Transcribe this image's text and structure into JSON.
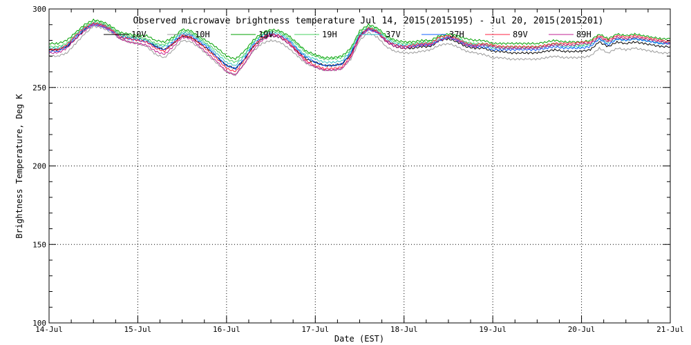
{
  "chart_data": {
    "type": "line",
    "title": "Observed microwave brightness temperature Jul 14, 2015(2015195) - Jul 20, 2015(2015201)",
    "xlabel": "Date (EST)",
    "ylabel": "Brightness Temperature, Deg K",
    "xlim": [
      0,
      7
    ],
    "ylim": [
      100,
      300
    ],
    "grid": true,
    "legend_placement": "top",
    "x_ticks": [
      {
        "value": 0,
        "label": "14-Jul"
      },
      {
        "value": 1,
        "label": "15-Jul"
      },
      {
        "value": 2,
        "label": "16-Jul"
      },
      {
        "value": 3,
        "label": "17-Jul"
      },
      {
        "value": 4,
        "label": "18-Jul"
      },
      {
        "value": 5,
        "label": "19-Jul"
      },
      {
        "value": 6,
        "label": "20-Jul"
      },
      {
        "value": 7,
        "label": "21-Jul"
      }
    ],
    "y_ticks": [
      {
        "value": 100,
        "label": "100"
      },
      {
        "value": 150,
        "label": "150"
      },
      {
        "value": 200,
        "label": "200"
      },
      {
        "value": 250,
        "label": "250"
      },
      {
        "value": 300,
        "label": "300"
      }
    ],
    "x": [
      0.0,
      0.1,
      0.2,
      0.3,
      0.4,
      0.5,
      0.6,
      0.7,
      0.8,
      0.9,
      1.0,
      1.1,
      1.2,
      1.3,
      1.4,
      1.5,
      1.6,
      1.7,
      1.8,
      1.9,
      2.0,
      2.1,
      2.2,
      2.3,
      2.4,
      2.5,
      2.6,
      2.7,
      2.8,
      2.9,
      3.0,
      3.1,
      3.2,
      3.3,
      3.4,
      3.5,
      3.6,
      3.7,
      3.8,
      3.9,
      4.0,
      4.1,
      4.2,
      4.3,
      4.4,
      4.5,
      4.6,
      4.7,
      4.8,
      4.9,
      5.0,
      5.1,
      5.2,
      5.3,
      5.4,
      5.5,
      5.6,
      5.7,
      5.8,
      5.9,
      6.0,
      6.1,
      6.2,
      6.3,
      6.4,
      6.5,
      6.6,
      6.7,
      6.8,
      6.9,
      7.0
    ],
    "series": [
      {
        "name": "10V",
        "color": "#000000",
        "values": [
          274,
          274,
          276,
          281,
          287,
          291,
          290,
          287,
          283,
          282,
          281,
          280,
          276,
          274,
          278,
          283,
          282,
          278,
          274,
          269,
          264,
          262,
          268,
          276,
          281,
          283,
          282,
          278,
          273,
          268,
          266,
          264,
          264,
          265,
          271,
          283,
          288,
          285,
          279,
          276,
          275,
          275,
          276,
          276,
          280,
          281,
          279,
          276,
          275,
          275,
          273,
          273,
          272,
          272,
          272,
          272,
          273,
          274,
          273,
          273,
          273,
          274,
          279,
          276,
          279,
          278,
          279,
          278,
          277,
          276,
          276
        ]
      },
      {
        "name": "10H",
        "color": "#9a9a9a",
        "values": [
          270,
          270,
          272,
          278,
          284,
          289,
          288,
          285,
          281,
          279,
          278,
          276,
          271,
          269,
          274,
          280,
          279,
          275,
          270,
          265,
          260,
          258,
          265,
          273,
          278,
          280,
          279,
          275,
          270,
          265,
          263,
          261,
          261,
          262,
          268,
          280,
          285,
          282,
          276,
          273,
          272,
          272,
          273,
          274,
          277,
          278,
          276,
          273,
          272,
          271,
          269,
          269,
          268,
          268,
          268,
          268,
          269,
          270,
          269,
          269,
          269,
          270,
          275,
          272,
          275,
          274,
          275,
          274,
          273,
          272,
          272
        ]
      },
      {
        "name": "19V",
        "color": "#00a000",
        "values": [
          278,
          278,
          280,
          285,
          290,
          293,
          292,
          289,
          285,
          284,
          283,
          283,
          280,
          279,
          282,
          287,
          286,
          282,
          279,
          275,
          270,
          268,
          273,
          280,
          285,
          287,
          286,
          283,
          278,
          273,
          271,
          269,
          269,
          270,
          275,
          286,
          290,
          288,
          283,
          280,
          279,
          279,
          280,
          280,
          283,
          284,
          283,
          281,
          280,
          280,
          278,
          278,
          278,
          278,
          278,
          278,
          279,
          280,
          279,
          279,
          279,
          280,
          284,
          281,
          284,
          283,
          284,
          283,
          282,
          281,
          281
        ]
      },
      {
        "name": "19H",
        "color": "#4ad060",
        "values": [
          276,
          276,
          278,
          284,
          289,
          292,
          291,
          288,
          284,
          283,
          282,
          281,
          278,
          277,
          281,
          286,
          285,
          281,
          277,
          273,
          268,
          266,
          271,
          279,
          284,
          286,
          285,
          282,
          277,
          272,
          270,
          268,
          268,
          269,
          274,
          285,
          289,
          287,
          282,
          279,
          278,
          278,
          279,
          279,
          282,
          283,
          282,
          279,
          278,
          278,
          276,
          276,
          276,
          276,
          276,
          276,
          277,
          278,
          277,
          277,
          277,
          278,
          282,
          279,
          282,
          281,
          282,
          281,
          280,
          279,
          279
        ]
      },
      {
        "name": "37V",
        "color": "#30c0c0",
        "values": [
          275,
          275,
          277,
          283,
          288,
          291,
          290,
          287,
          283,
          282,
          281,
          280,
          277,
          276,
          280,
          285,
          284,
          280,
          276,
          271,
          266,
          264,
          270,
          278,
          283,
          285,
          284,
          281,
          275,
          270,
          268,
          266,
          266,
          267,
          273,
          284,
          288,
          286,
          281,
          278,
          277,
          277,
          278,
          278,
          281,
          282,
          281,
          278,
          277,
          277,
          275,
          275,
          275,
          275,
          275,
          275,
          276,
          277,
          276,
          276,
          276,
          277,
          281,
          278,
          281,
          280,
          281,
          280,
          279,
          278,
          278
        ]
      },
      {
        "name": "37H",
        "color": "#1060ff",
        "values": [
          273,
          273,
          276,
          282,
          287,
          290,
          289,
          286,
          282,
          281,
          280,
          279,
          276,
          274,
          279,
          284,
          283,
          279,
          275,
          269,
          264,
          262,
          268,
          277,
          282,
          284,
          283,
          280,
          274,
          269,
          266,
          264,
          264,
          265,
          272,
          283,
          287,
          285,
          280,
          277,
          276,
          276,
          277,
          277,
          280,
          282,
          280,
          277,
          276,
          276,
          274,
          274,
          274,
          274,
          274,
          274,
          275,
          276,
          275,
          275,
          275,
          276,
          281,
          277,
          281,
          280,
          281,
          280,
          279,
          278,
          278
        ]
      },
      {
        "name": "89V",
        "color": "#ff2040",
        "values": [
          274,
          274,
          277,
          283,
          288,
          291,
          290,
          287,
          282,
          281,
          280,
          279,
          275,
          273,
          278,
          283,
          282,
          278,
          273,
          268,
          262,
          260,
          267,
          276,
          282,
          284,
          283,
          279,
          273,
          267,
          264,
          262,
          262,
          263,
          270,
          283,
          288,
          286,
          280,
          277,
          276,
          277,
          278,
          278,
          282,
          283,
          281,
          278,
          277,
          278,
          277,
          276,
          276,
          276,
          276,
          276,
          277,
          278,
          278,
          278,
          279,
          279,
          283,
          280,
          283,
          282,
          283,
          282,
          281,
          280,
          279
        ]
      },
      {
        "name": "89H",
        "color": "#c02090",
        "values": [
          272,
          272,
          275,
          281,
          286,
          290,
          289,
          286,
          281,
          279,
          278,
          277,
          273,
          271,
          276,
          282,
          281,
          276,
          271,
          266,
          260,
          258,
          265,
          274,
          280,
          283,
          282,
          278,
          272,
          266,
          263,
          261,
          261,
          262,
          269,
          282,
          287,
          285,
          279,
          276,
          275,
          276,
          277,
          277,
          280,
          282,
          280,
          277,
          276,
          277,
          276,
          275,
          275,
          275,
          275,
          275,
          276,
          277,
          277,
          277,
          278,
          278,
          282,
          279,
          282,
          281,
          282,
          281,
          280,
          279,
          278
        ]
      }
    ]
  }
}
